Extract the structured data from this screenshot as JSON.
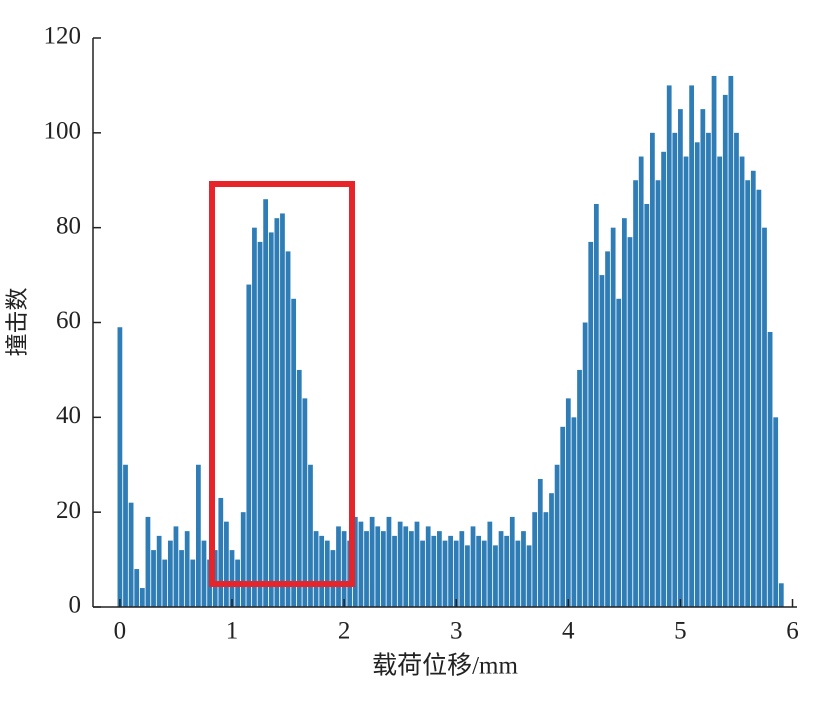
{
  "chart_data": {
    "type": "bar",
    "xlabel": "载荷位移/mm",
    "ylabel": "撞击数",
    "color": "#2f7db6",
    "xlim": [
      -0.24,
      6.04
    ],
    "xticks": [
      0,
      1,
      2,
      3,
      4,
      5,
      6
    ],
    "ylim": [
      0,
      120
    ],
    "yticks": [
      0,
      20,
      40,
      60,
      80,
      100,
      120
    ],
    "x": [
      0,
      0.05,
      0.1,
      0.15,
      0.2,
      0.25,
      0.3,
      0.35,
      0.4,
      0.45,
      0.5,
      0.55,
      0.6,
      0.65,
      0.7,
      0.75,
      0.8,
      0.85,
      0.9,
      0.95,
      1,
      1.05,
      1.1,
      1.15,
      1.2,
      1.25,
      1.3,
      1.35,
      1.4,
      1.45,
      1.5,
      1.55,
      1.6,
      1.65,
      1.7,
      1.75,
      1.8,
      1.85,
      1.9,
      1.95,
      2,
      2.05,
      2.1,
      2.15,
      2.2,
      2.25,
      2.3,
      2.35,
      2.4,
      2.45,
      2.5,
      2.55,
      2.6,
      2.65,
      2.7,
      2.75,
      2.8,
      2.85,
      2.9,
      2.95,
      3,
      3.05,
      3.1,
      3.15,
      3.2,
      3.25,
      3.3,
      3.35,
      3.4,
      3.45,
      3.5,
      3.55,
      3.6,
      3.65,
      3.7,
      3.75,
      3.8,
      3.85,
      3.9,
      3.95,
      4,
      4.05,
      4.1,
      4.15,
      4.2,
      4.25,
      4.3,
      4.35,
      4.4,
      4.45,
      4.5,
      4.55,
      4.6,
      4.65,
      4.7,
      4.75,
      4.8,
      4.85,
      4.9,
      4.95,
      5,
      5.05,
      5.1,
      5.15,
      5.2,
      5.25,
      5.3,
      5.35,
      5.4,
      5.45,
      5.5,
      5.55,
      5.6,
      5.65,
      5.7,
      5.75,
      5.8,
      5.85,
      5.9
    ],
    "values": [
      59,
      30,
      22,
      8,
      4,
      19,
      12,
      15,
      10,
      14,
      17,
      12,
      16,
      10,
      30,
      14,
      10,
      12,
      23,
      18,
      12,
      10,
      20,
      68,
      80,
      77,
      86,
      79,
      82,
      83,
      75,
      65,
      50,
      44,
      30,
      16,
      15,
      14,
      12,
      17,
      16,
      14,
      19,
      18,
      16,
      19,
      17,
      16,
      19,
      15,
      18,
      17,
      16,
      18,
      14,
      17,
      15,
      16,
      14,
      15,
      14,
      16,
      13,
      17,
      15,
      14,
      18,
      13,
      16,
      15,
      19,
      14,
      16,
      13,
      20,
      27,
      20,
      24,
      30,
      38,
      44,
      40,
      50,
      60,
      77,
      85,
      70,
      75,
      80,
      65,
      82,
      78,
      90,
      95,
      85,
      100,
      90,
      96,
      110,
      100,
      105,
      95,
      110,
      98,
      105,
      100,
      112,
      95,
      108,
      112,
      100,
      95,
      90,
      92,
      88,
      80,
      58,
      40,
      5
    ]
  }
}
